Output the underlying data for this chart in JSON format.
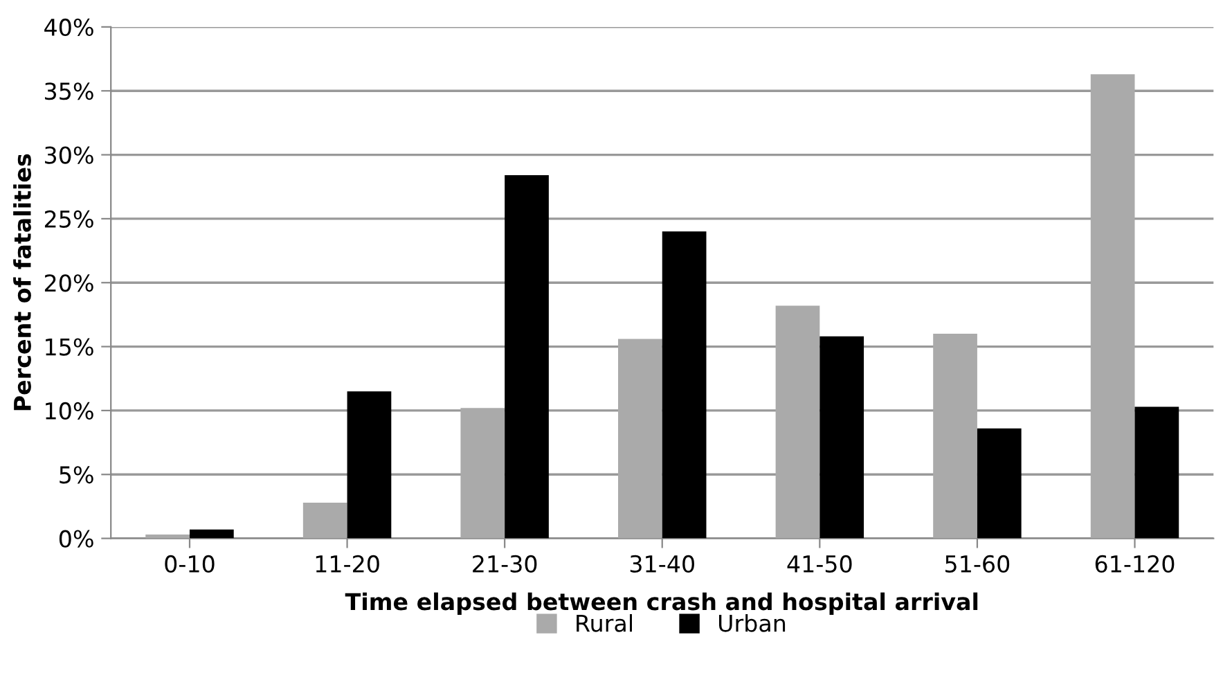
{
  "chart_data": {
    "type": "bar",
    "xlabel": "Time elapsed between crash and hospital arrival",
    "ylabel": "Percent of fatalities",
    "categories": [
      "0-10",
      "11-20",
      "21-30",
      "31-40",
      "41-50",
      "51-60",
      "61-120"
    ],
    "series": [
      {
        "name": "Rural",
        "color": "#aaaaaa",
        "values": [
          0.3,
          2.8,
          10.2,
          15.6,
          18.2,
          16.0,
          36.3
        ]
      },
      {
        "name": "Urban",
        "color": "#000000",
        "values": [
          0.7,
          11.5,
          28.4,
          24.0,
          15.8,
          8.6,
          10.3
        ]
      }
    ],
    "ylim": [
      0,
      40
    ],
    "yticks": [
      {
        "value": 0,
        "label": "0%"
      },
      {
        "value": 5,
        "label": "5%"
      },
      {
        "value": 10,
        "label": "10%"
      },
      {
        "value": 15,
        "label": "15%"
      },
      {
        "value": 20,
        "label": "20%"
      },
      {
        "value": 25,
        "label": "25%"
      },
      {
        "value": 30,
        "label": "30%"
      },
      {
        "value": 35,
        "label": "35%"
      },
      {
        "value": 40,
        "label": "40%"
      }
    ],
    "grid": "y",
    "legend": "bottom"
  }
}
